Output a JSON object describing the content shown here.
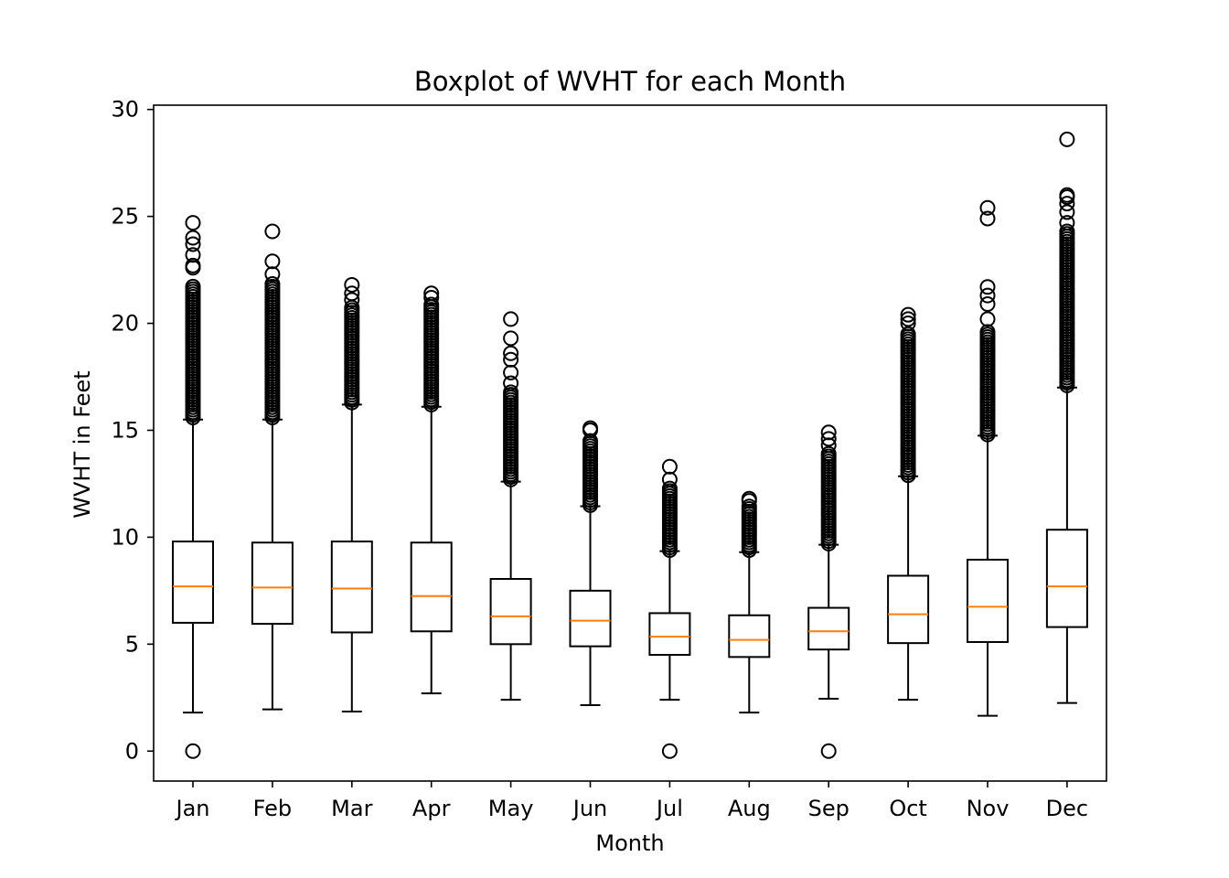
{
  "chart_data": {
    "type": "boxplot",
    "title": "Boxplot of WVHT for each Month",
    "xlabel": "Month",
    "ylabel": "WVHT in Feet",
    "ylim": [
      -1.4,
      30.2
    ],
    "yticks": [
      0,
      5,
      10,
      15,
      20,
      25,
      30
    ],
    "grid": false,
    "colors": {
      "box": "#000000",
      "median": "#ff7f0e",
      "background": "#ffffff"
    },
    "categories": [
      "Jan",
      "Feb",
      "Mar",
      "Apr",
      "May",
      "Jun",
      "Jul",
      "Aug",
      "Sep",
      "Oct",
      "Nov",
      "Dec"
    ],
    "boxes": [
      {
        "label": "Jan",
        "whisker_low": 1.8,
        "q1": 6.0,
        "median": 7.7,
        "q3": 9.8,
        "whisker_high": 15.5,
        "outliers_low": [
          0.0
        ],
        "outliers_high_range": [
          15.6,
          21.8
        ],
        "outliers_high_extreme": [
          22.6,
          22.7,
          23.2,
          23.7,
          24.0,
          24.7
        ]
      },
      {
        "label": "Feb",
        "whisker_low": 1.95,
        "q1": 5.95,
        "median": 7.65,
        "q3": 9.75,
        "whisker_high": 15.5,
        "outliers_low": [],
        "outliers_high_range": [
          15.6,
          21.9
        ],
        "outliers_high_extreme": [
          22.3,
          22.9,
          24.3
        ]
      },
      {
        "label": "Mar",
        "whisker_low": 1.85,
        "q1": 5.55,
        "median": 7.6,
        "q3": 9.8,
        "whisker_high": 16.2,
        "outliers_low": [],
        "outliers_high_range": [
          16.3,
          20.8
        ],
        "outliers_high_extreme": [
          21.1,
          21.4,
          21.8
        ]
      },
      {
        "label": "Apr",
        "whisker_low": 2.7,
        "q1": 5.6,
        "median": 7.25,
        "q3": 9.75,
        "whisker_high": 16.1,
        "outliers_low": [],
        "outliers_high_range": [
          16.2,
          20.9
        ],
        "outliers_high_extreme": [
          21.2,
          21.4
        ]
      },
      {
        "label": "May",
        "whisker_low": 2.4,
        "q1": 5.0,
        "median": 6.3,
        "q3": 8.05,
        "whisker_high": 12.6,
        "outliers_low": [],
        "outliers_high_range": [
          12.7,
          16.8
        ],
        "outliers_high_extreme": [
          17.2,
          17.7,
          18.3,
          18.6,
          19.3,
          20.2
        ]
      },
      {
        "label": "Jun",
        "whisker_low": 2.15,
        "q1": 4.9,
        "median": 6.1,
        "q3": 7.5,
        "whisker_high": 11.45,
        "outliers_low": [],
        "outliers_high_range": [
          11.5,
          14.6
        ],
        "outliers_high_extreme": [
          15.0,
          15.1
        ]
      },
      {
        "label": "Jul",
        "whisker_low": 2.4,
        "q1": 4.5,
        "median": 5.35,
        "q3": 6.45,
        "whisker_high": 9.35,
        "outliers_low": [
          0.0
        ],
        "outliers_high_range": [
          9.4,
          12.3
        ],
        "outliers_high_extreme": [
          12.7,
          13.3
        ]
      },
      {
        "label": "Aug",
        "whisker_low": 1.8,
        "q1": 4.4,
        "median": 5.2,
        "q3": 6.35,
        "whisker_high": 9.3,
        "outliers_low": [],
        "outliers_high_range": [
          9.4,
          11.5
        ],
        "outliers_high_extreme": [
          11.7,
          11.8
        ]
      },
      {
        "label": "Sep",
        "whisker_low": 2.45,
        "q1": 4.75,
        "median": 5.6,
        "q3": 6.7,
        "whisker_high": 9.65,
        "outliers_low": [
          0.0
        ],
        "outliers_high_range": [
          9.7,
          14.0
        ],
        "outliers_high_extreme": [
          14.3,
          14.6,
          14.9
        ]
      },
      {
        "label": "Oct",
        "whisker_low": 2.4,
        "q1": 5.05,
        "median": 6.4,
        "q3": 8.2,
        "whisker_high": 12.85,
        "outliers_low": [],
        "outliers_high_range": [
          12.9,
          19.6
        ],
        "outliers_high_extreme": [
          20.0,
          20.2,
          20.4
        ]
      },
      {
        "label": "Nov",
        "whisker_low": 1.65,
        "q1": 5.1,
        "median": 6.75,
        "q3": 8.95,
        "whisker_high": 14.75,
        "outliers_low": [],
        "outliers_high_range": [
          14.8,
          19.6
        ],
        "outliers_high_extreme": [
          20.2,
          20.9,
          21.3,
          21.7,
          24.9,
          25.4
        ]
      },
      {
        "label": "Dec",
        "whisker_low": 2.25,
        "q1": 5.8,
        "median": 7.7,
        "q3": 10.35,
        "whisker_high": 17.0,
        "outliers_low": [],
        "outliers_high_range": [
          17.1,
          24.4
        ],
        "outliers_high_extreme": [
          24.7,
          25.2,
          25.6,
          25.9,
          26.0,
          28.6
        ]
      }
    ]
  }
}
